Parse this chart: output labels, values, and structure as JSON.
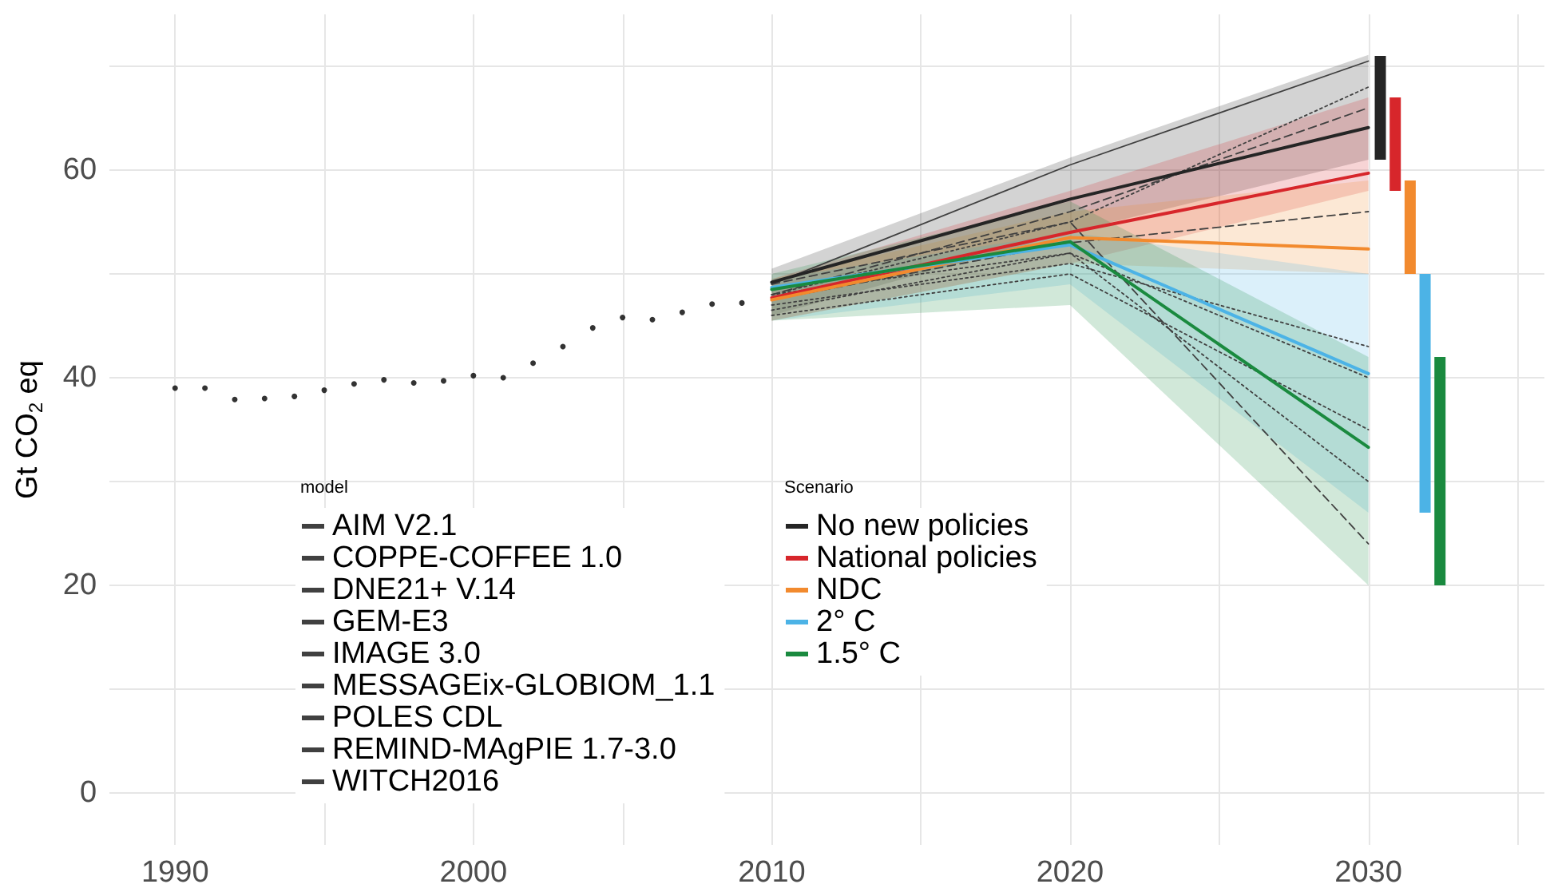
{
  "chart_data": {
    "type": "line",
    "ylabel": "Gt CO$_{2}$ eq",
    "legend_title": [
      "model",
      "Scenario"
    ],
    "xlim": [
      1987.8,
      2035.9
    ],
    "xticks": [
      1990,
      {
        "value": 1995,
        "label": null
      },
      2000,
      {
        "value": 2005,
        "label": null
      },
      2010,
      {
        "value": 2015,
        "label": null
      },
      2020,
      {
        "value": 2025,
        "label": null
      },
      2030,
      {
        "value": 2035,
        "label": null
      }
    ],
    "ylim": [
      -5,
      75
    ],
    "yticks": [
      0,
      {
        "value": 10,
        "label": null
      },
      20,
      {
        "value": 30,
        "label": null
      },
      40,
      {
        "value": 50,
        "label": null
      },
      60,
      {
        "value": 70,
        "label": null
      }
    ],
    "grid": true,
    "legend": "bottom left",
    "series": [
      {
        "type": "scatter",
        "marker": "circle",
        "color": "#000000",
        "x": [
          1990,
          1991,
          1992,
          1993,
          1994,
          1995,
          1996,
          1997,
          1998,
          1999,
          2000,
          2001,
          2002,
          2003,
          2004,
          2005,
          2006,
          2007,
          2008,
          2009
        ],
        "values": [
          39.0,
          39.0,
          37.9,
          38.0,
          38.2,
          38.8,
          39.4,
          39.8,
          39.5,
          39.7,
          40.2,
          40.0,
          41.4,
          43.0,
          44.8,
          45.8,
          45.6,
          46.3,
          47.1,
          47.2
        ]
      },
      {
        "name": "No new policies",
        "color": "#252525",
        "x": [
          2010,
          2020,
          2030
        ],
        "values": [
          49.2,
          57.2,
          64.1
        ],
        "lower": [
          46,
          54,
          61
        ],
        "upper": [
          50.5,
          61.2,
          71.1
        ]
      },
      {
        "name": "National policies",
        "color": "#d7262b",
        "x": [
          2010,
          2020,
          2030
        ],
        "values": [
          47.7,
          54,
          59.7
        ],
        "lower": [
          45.5,
          51,
          58
        ],
        "upper": [
          49.5,
          58,
          67
        ]
      },
      {
        "name": "NDC",
        "color": "#f28a2e",
        "x": [
          2010,
          2020,
          2030
        ],
        "values": [
          47.5,
          53.5,
          52.4
        ],
        "lower": [
          45.5,
          51,
          50
        ],
        "upper": [
          49.5,
          56,
          59
        ]
      },
      {
        "name": "2° C",
        "color": "#4cb3e6",
        "x": [
          2010,
          2020,
          2030
        ],
        "values": [
          48.7,
          52.8,
          40.4
        ],
        "lower": [
          45.5,
          49,
          27
        ],
        "upper": [
          49.5,
          54,
          50
        ]
      },
      {
        "name": "1.5° C",
        "color": "#1a8a3f",
        "x": [
          2010,
          2020,
          2030
        ],
        "values": [
          48.5,
          53.1,
          33.3
        ],
        "lower": [
          45.5,
          47,
          20
        ],
        "upper": [
          50,
          57,
          42
        ]
      },
      {
        "name": "AIM V2.1",
        "line_style": "solid",
        "color": "#404040",
        "x": [
          2010,
          2020,
          2030
        ],
        "values": [
          49,
          60.5,
          70.5
        ]
      },
      {
        "name": "COPPE-COFFEE 1.0",
        "line_style": "dotted",
        "color": "#404040",
        "x": [
          2010,
          2020,
          2030
        ],
        "values": [
          46,
          50,
          35
        ]
      },
      {
        "name": "DNE21+ V.14",
        "line_style": "dashed",
        "color": "#404040",
        "x": [
          2010,
          2020,
          2030
        ],
        "values": [
          48,
          56,
          66
        ]
      },
      {
        "name": "GEM-E3",
        "line_style": "dashed",
        "color": "#404040",
        "x": [
          2010,
          2020,
          2030
        ],
        "values": [
          47.5,
          53,
          56
        ]
      },
      {
        "name": "IMAGE 3.0",
        "line_style": "dotted",
        "color": "#404040",
        "x": [
          2010,
          2020,
          2030
        ],
        "values": [
          48,
          55,
          68
        ]
      },
      {
        "name": "MESSAGEix-GLOBIOM_1.1",
        "line_style": "dotted",
        "color": "#404040",
        "x": [
          2010,
          2020,
          2030
        ],
        "values": [
          48,
          52,
          40
        ]
      },
      {
        "name": "POLES CDL",
        "line_style": "dashed",
        "color": "#404040",
        "x": [
          2010,
          2020,
          2030
        ],
        "values": [
          49,
          55,
          24
        ]
      },
      {
        "name": "REMIND-MAgPIE 1.7-3.0",
        "line_style": "dotted",
        "color": "#404040",
        "x": [
          2010,
          2020,
          2030
        ],
        "values": [
          47,
          51,
          43
        ]
      },
      {
        "name": "WITCH2016",
        "line_style": "dotted",
        "color": "#404040",
        "x": [
          2010,
          2020,
          2030
        ],
        "values": [
          46.5,
          52,
          30
        ]
      },
      {
        "type": "bar",
        "color": "#252525",
        "x": [
          2030.4
        ],
        "base": [
          61
        ],
        "values": [
          10
        ]
      },
      {
        "type": "bar",
        "color": "#d7262b",
        "x": [
          2030.9
        ],
        "base": [
          58
        ],
        "values": [
          9
        ]
      },
      {
        "type": "bar",
        "color": "#f28a2e",
        "x": [
          2031.4
        ],
        "base": [
          50
        ],
        "values": [
          9
        ]
      },
      {
        "type": "bar",
        "color": "#4cb3e6",
        "x": [
          2031.9
        ],
        "base": [
          27
        ],
        "values": [
          23
        ]
      },
      {
        "type": "bar",
        "color": "#1a8a3f",
        "x": [
          2032.4
        ],
        "base": [
          20
        ],
        "values": [
          22
        ]
      }
    ]
  }
}
